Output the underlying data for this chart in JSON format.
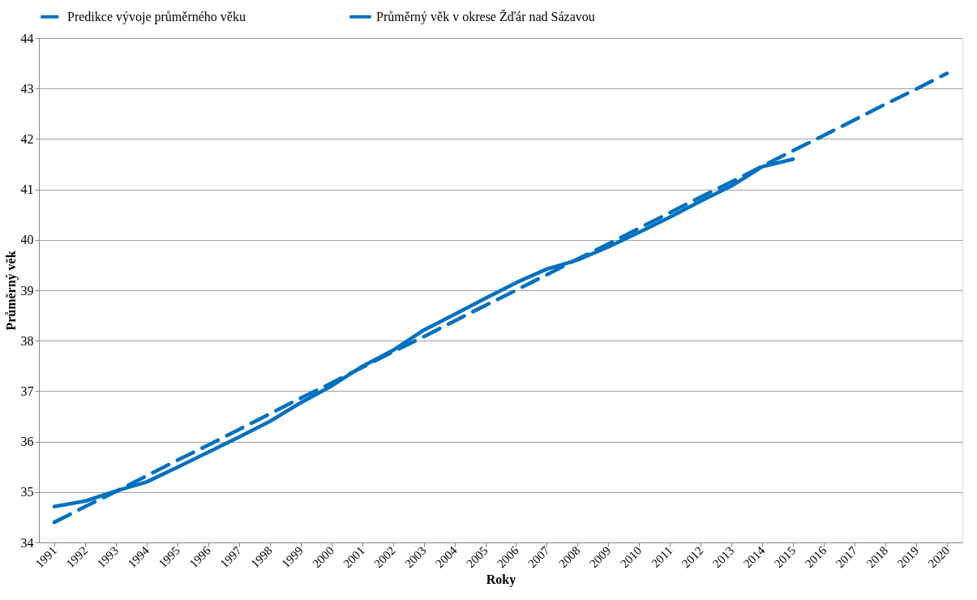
{
  "chart_data": {
    "type": "line",
    "xlabel": "Roky",
    "ylabel": "Průměrný věk",
    "categories": [
      "1991",
      "1992",
      "1993",
      "1994",
      "1995",
      "1996",
      "1997",
      "1998",
      "1999",
      "2000",
      "2001",
      "2002",
      "2003",
      "2004",
      "2005",
      "2006",
      "2007",
      "2008",
      "2009",
      "2010",
      "2011",
      "2012",
      "2013",
      "2014",
      "2015",
      "2016",
      "2017",
      "2018",
      "2019",
      "2020"
    ],
    "series": [
      {
        "name": "Predikce vývoje průměrného věku",
        "color": "#0070c0",
        "line_style": "dashed",
        "values": [
          34.4,
          34.71,
          35.01,
          35.32,
          35.63,
          35.93,
          36.24,
          36.55,
          36.86,
          37.16,
          37.47,
          37.78,
          38.08,
          38.39,
          38.7,
          39.0,
          39.31,
          39.62,
          39.92,
          40.23,
          40.54,
          40.85,
          41.15,
          41.46,
          41.77,
          42.07,
          42.38,
          42.69,
          42.99,
          43.3
        ]
      },
      {
        "name": "Průměrný věk v okrese Žďár nad Sázavou",
        "color": "#0070c0",
        "line_style": "solid",
        "values": [
          34.71,
          34.82,
          35.02,
          35.2,
          35.49,
          35.79,
          36.09,
          36.4,
          36.77,
          37.1,
          37.49,
          37.81,
          38.21,
          38.52,
          38.84,
          39.15,
          39.42,
          39.6,
          39.86,
          40.15,
          40.45,
          40.77,
          41.07,
          41.45,
          41.6,
          null,
          null,
          null,
          null,
          null
        ]
      }
    ],
    "ylim": [
      34,
      44
    ],
    "yticks": [
      34,
      35,
      36,
      37,
      38,
      39,
      40,
      41,
      42,
      43,
      44
    ],
    "grid": "y",
    "legend": "top",
    "marker": "none"
  }
}
